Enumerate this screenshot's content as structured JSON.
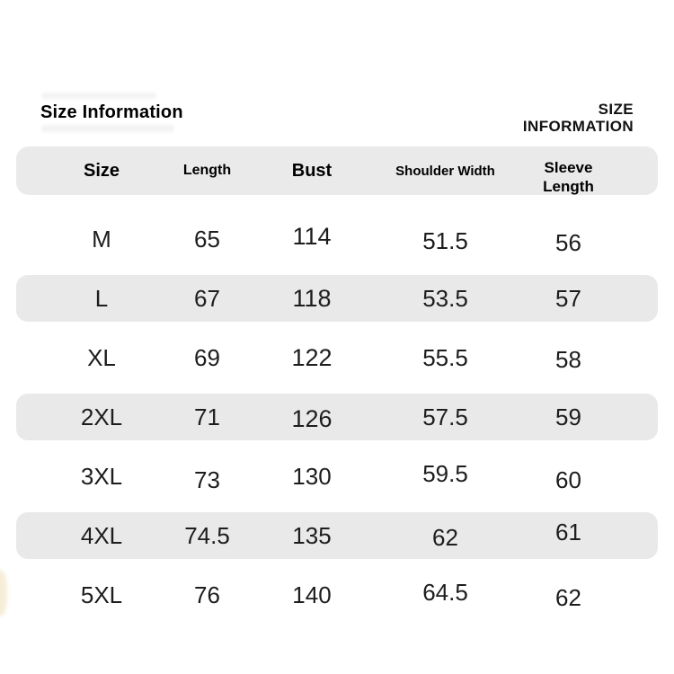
{
  "header": {
    "title": "Size Information",
    "brand": {
      "line1": "SIZE",
      "line2": "INFORMATION"
    }
  },
  "colors": {
    "background": "#ffffff",
    "header_band_bg": "#eaeaea",
    "row_stripe_bg": "#e9e9e9",
    "text": "#1d1d1d",
    "title_text": "#000000"
  },
  "chart_data": {
    "type": "table",
    "title": "Size Information",
    "columns": [
      "Size",
      "Length",
      "Bust",
      "Shoulder Width",
      "Sleeve Length"
    ],
    "rows": [
      [
        "M",
        "65",
        "114",
        "51.5",
        "56"
      ],
      [
        "L",
        "67",
        "118",
        "53.5",
        "57"
      ],
      [
        "XL",
        "69",
        "122",
        "55.5",
        "58"
      ],
      [
        "2XL",
        "71",
        "126",
        "57.5",
        "59"
      ],
      [
        "3XL",
        "73",
        "130",
        "59.5",
        "60"
      ],
      [
        "4XL",
        "74.5",
        "135",
        "62",
        "61"
      ],
      [
        "5XL",
        "76",
        "140",
        "64.5",
        "62"
      ]
    ],
    "layout_hints": {
      "striped_rows": [
        "L",
        "2XL",
        "4XL"
      ],
      "header_band": true,
      "grid_lines": false
    }
  }
}
